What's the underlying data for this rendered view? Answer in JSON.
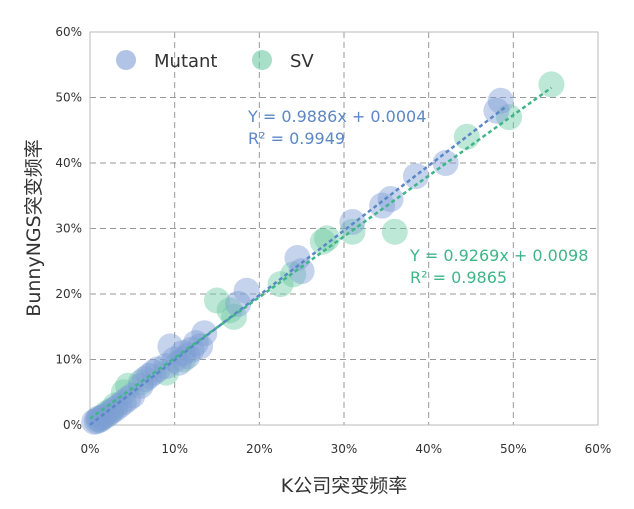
{
  "chart_data": {
    "type": "scatter",
    "xlabel": "K公司突变频率",
    "ylabel": "BunnyNGS突变频率",
    "xlim": [
      0,
      0.6
    ],
    "ylim": [
      0,
      0.6
    ],
    "x_ticks": [
      "0%",
      "10%",
      "20%",
      "30%",
      "40%",
      "50%",
      "60%"
    ],
    "y_ticks": [
      "0%",
      "10%",
      "20%",
      "30%",
      "40%",
      "50%",
      "60%"
    ],
    "grid": true,
    "legend_position": "top-left",
    "series": [
      {
        "name": "Mutant",
        "color": "#7e9dd4",
        "points": [
          [
            0.005,
            0.005
          ],
          [
            0.008,
            0.006
          ],
          [
            0.01,
            0.01
          ],
          [
            0.012,
            0.008
          ],
          [
            0.015,
            0.012
          ],
          [
            0.02,
            0.015
          ],
          [
            0.025,
            0.02
          ],
          [
            0.03,
            0.025
          ],
          [
            0.035,
            0.03
          ],
          [
            0.04,
            0.035
          ],
          [
            0.045,
            0.04
          ],
          [
            0.05,
            0.045
          ],
          [
            0.06,
            0.06
          ],
          [
            0.065,
            0.07
          ],
          [
            0.07,
            0.075
          ],
          [
            0.075,
            0.08
          ],
          [
            0.08,
            0.085
          ],
          [
            0.09,
            0.09
          ],
          [
            0.095,
            0.12
          ],
          [
            0.1,
            0.1
          ],
          [
            0.105,
            0.095
          ],
          [
            0.11,
            0.11
          ],
          [
            0.115,
            0.105
          ],
          [
            0.12,
            0.115
          ],
          [
            0.125,
            0.125
          ],
          [
            0.13,
            0.12
          ],
          [
            0.135,
            0.14
          ],
          [
            0.175,
            0.185
          ],
          [
            0.185,
            0.205
          ],
          [
            0.245,
            0.255
          ],
          [
            0.25,
            0.235
          ],
          [
            0.31,
            0.31
          ],
          [
            0.345,
            0.335
          ],
          [
            0.355,
            0.345
          ],
          [
            0.385,
            0.38
          ],
          [
            0.42,
            0.4
          ],
          [
            0.48,
            0.48
          ],
          [
            0.485,
            0.495
          ]
        ]
      },
      {
        "name": "SV",
        "color": "#6cc9a3",
        "points": [
          [
            0.01,
            0.008
          ],
          [
            0.015,
            0.012
          ],
          [
            0.02,
            0.018
          ],
          [
            0.025,
            0.022
          ],
          [
            0.03,
            0.03
          ],
          [
            0.04,
            0.05
          ],
          [
            0.045,
            0.06
          ],
          [
            0.06,
            0.065
          ],
          [
            0.09,
            0.08
          ],
          [
            0.11,
            0.1
          ],
          [
            0.15,
            0.19
          ],
          [
            0.165,
            0.175
          ],
          [
            0.17,
            0.165
          ],
          [
            0.225,
            0.215
          ],
          [
            0.24,
            0.23
          ],
          [
            0.275,
            0.28
          ],
          [
            0.28,
            0.285
          ],
          [
            0.31,
            0.295
          ],
          [
            0.36,
            0.295
          ],
          [
            0.445,
            0.44
          ],
          [
            0.495,
            0.47
          ],
          [
            0.545,
            0.52
          ]
        ]
      }
    ],
    "fits": [
      {
        "series": "Mutant",
        "slope": 0.9886,
        "intercept": 0.0004,
        "x_range": [
          0,
          0.49
        ],
        "equation": "Y = 0.9886x + 0.0004",
        "r2": "R² = 0.9949",
        "color": "#5b87c6"
      },
      {
        "series": "SV",
        "slope": 0.9269,
        "intercept": 0.0098,
        "x_range": [
          0,
          0.545
        ],
        "equation": "Y = 0.9269x + 0.0098",
        "r2": "R² = 0.9865",
        "color": "#3fb589"
      }
    ]
  }
}
